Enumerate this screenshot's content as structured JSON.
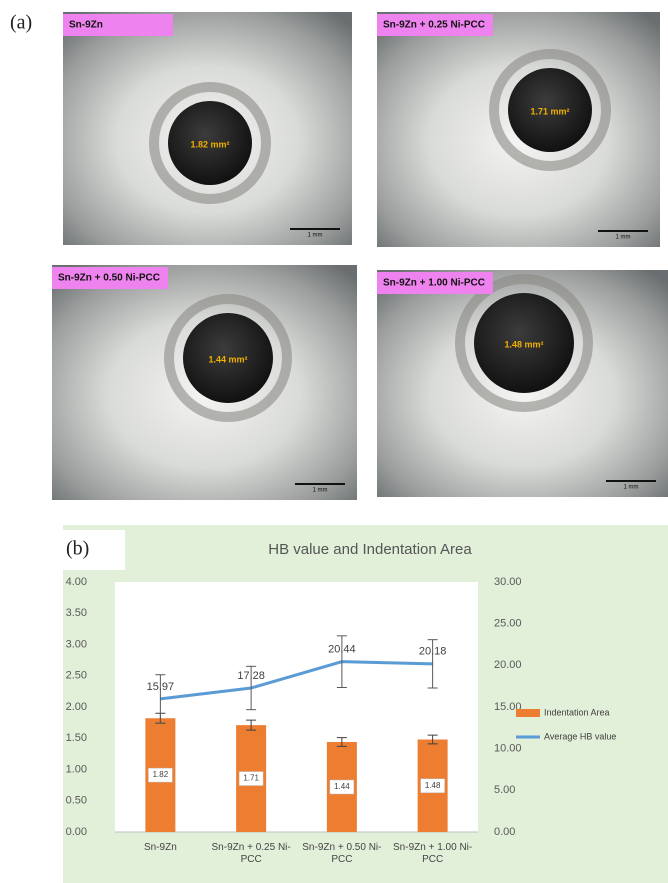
{
  "panel_a": {
    "label": "(a)",
    "images": [
      {
        "title": "Sn-9Zn",
        "area": "1.82 mm²",
        "scale": "1 mm"
      },
      {
        "title": "Sn-9Zn + 0.25 Ni-PCC",
        "area": "1.71 mm²",
        "scale": "1 mm"
      },
      {
        "title": "Sn-9Zn + 0.50 Ni-PCC",
        "area": "1.44 mm²",
        "scale": "1 mm"
      },
      {
        "title": "Sn-9Zn + 1.00 Ni-PCC",
        "area": "1.48 mm²",
        "scale": "1 mm"
      }
    ]
  },
  "panel_b": {
    "label": "(b)"
  },
  "chart_data": {
    "type": "bar-line",
    "title": "HB value and Indentation Area",
    "categories": [
      "Sn-9Zn",
      "Sn-9Zn + 0.25 Ni-PCC",
      "Sn-9Zn + 0.50 Ni-PCC",
      "Sn-9Zn + 1.00 Ni-PCC"
    ],
    "series": [
      {
        "name": "Indentation Area",
        "type": "bar",
        "color": "#ed7d31",
        "values": [
          1.82,
          1.71,
          1.44,
          1.48
        ],
        "errors": [
          0.08,
          0.08,
          0.07,
          0.07
        ]
      },
      {
        "name": "Average HB value",
        "type": "line",
        "color": "#5b9bd5",
        "axis": "y2",
        "values": [
          15.97,
          17.28,
          20.44,
          20.18
        ],
        "errors": [
          2.9,
          2.6,
          3.1,
          2.9
        ]
      }
    ],
    "ylim": [
      0,
      4
    ],
    "yticks": [
      {
        "value": 0,
        "label": "0.00"
      },
      {
        "value": 0.5,
        "label": "0.50"
      },
      {
        "value": 1,
        "label": "1.00"
      },
      {
        "value": 1.5,
        "label": "1.50"
      },
      {
        "value": 2,
        "label": "2.00"
      },
      {
        "value": 2.5,
        "label": "2.50"
      },
      {
        "value": 3,
        "label": "3.00"
      },
      {
        "value": 3.5,
        "label": "3.50"
      },
      {
        "value": 4,
        "label": "4.00"
      }
    ],
    "y2lim": [
      0,
      30
    ],
    "y2ticks": [
      {
        "value": 0,
        "label": "0.00"
      },
      {
        "value": 5,
        "label": "5.00"
      },
      {
        "value": 10,
        "label": "10.00"
      },
      {
        "value": 15,
        "label": "15.00"
      },
      {
        "value": 20,
        "label": "20.00"
      },
      {
        "value": 25,
        "label": "25.00"
      },
      {
        "value": 30,
        "label": "30.00"
      }
    ],
    "grid": false,
    "legend": "right"
  }
}
